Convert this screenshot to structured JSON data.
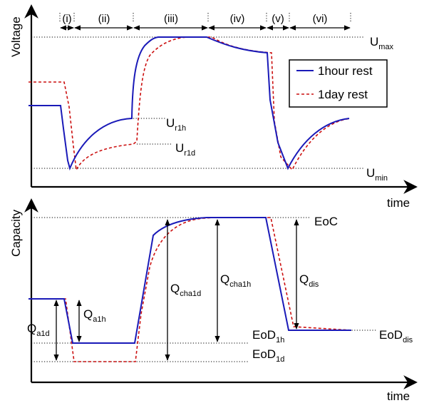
{
  "colors": {
    "one_hour": "#1a1ab8",
    "one_day": "#cc1111"
  },
  "top": {
    "ylabel": "Voltage",
    "xlabel": "time",
    "phases": [
      "(i)",
      "(ii)",
      "(iii)",
      "(iv)",
      "(v)",
      "(vi)"
    ],
    "umax": {
      "main": "U",
      "sub": "max"
    },
    "umin": {
      "main": "U",
      "sub": "min"
    },
    "ur1h": {
      "main": "U",
      "sub": "r1h"
    },
    "ur1d": {
      "main": "U",
      "sub": "r1d"
    },
    "legend": {
      "one_hour": "1hour rest",
      "one_day": "1day rest"
    }
  },
  "bottom": {
    "ylabel": "Capacity",
    "xlabel": "time",
    "eoc": "EoC",
    "eod1h": {
      "main": "EoD",
      "sub": "1h"
    },
    "eod1d": {
      "main": "EoD",
      "sub": "1d"
    },
    "eoddis": {
      "main": "EoD",
      "sub": "dis"
    },
    "qa1d": {
      "main": "Q",
      "sub": "a1d"
    },
    "qa1h": {
      "main": "Q",
      "sub": "a1h"
    },
    "qcha1d": {
      "main": "Q",
      "sub": "cha1d"
    },
    "qcha1h": {
      "main": "Q",
      "sub": "cha1h"
    },
    "qdis": {
      "main": "Q",
      "sub": "dis"
    }
  }
}
